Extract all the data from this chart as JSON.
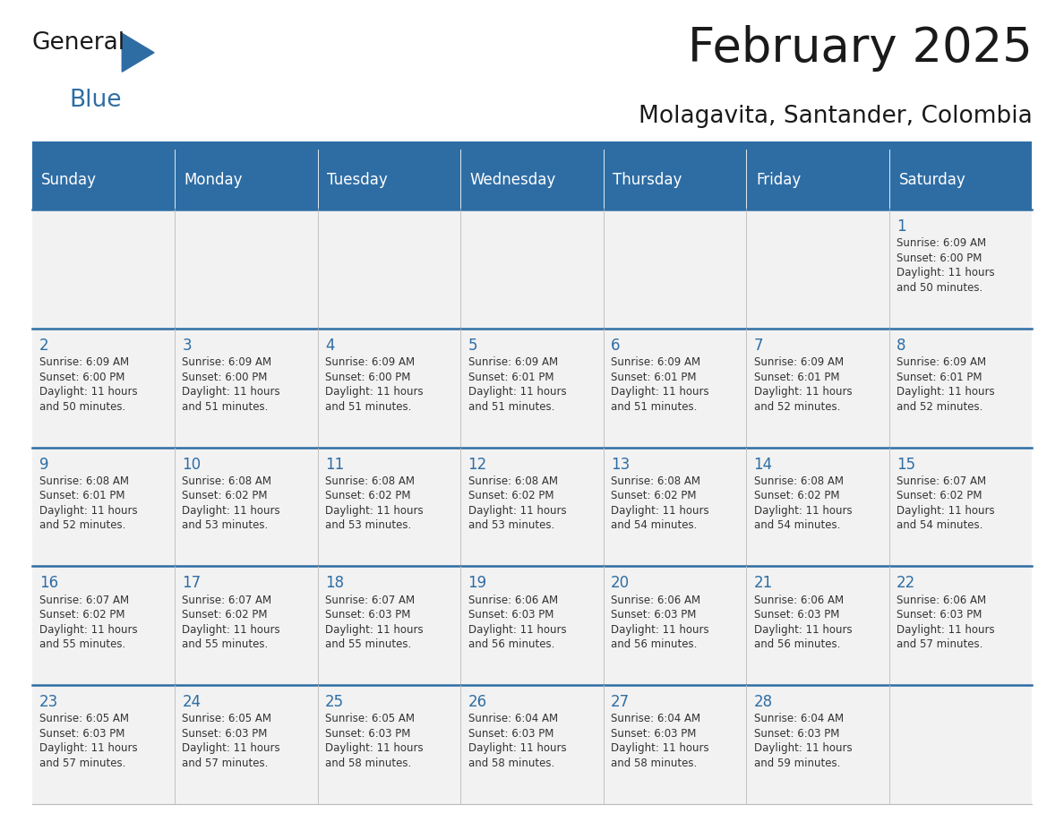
{
  "title": "February 2025",
  "subtitle": "Molagavita, Santander, Colombia",
  "header_bg": "#2E6DA4",
  "header_text": "#FFFFFF",
  "cell_bg": "#F2F2F2",
  "day_names": [
    "Sunday",
    "Monday",
    "Tuesday",
    "Wednesday",
    "Thursday",
    "Friday",
    "Saturday"
  ],
  "days": [
    {
      "day": 1,
      "col": 6,
      "row": 0,
      "sunrise": "6:09 AM",
      "sunset": "6:00 PM",
      "daylight": "11 hours\nand 50 minutes."
    },
    {
      "day": 2,
      "col": 0,
      "row": 1,
      "sunrise": "6:09 AM",
      "sunset": "6:00 PM",
      "daylight": "11 hours\nand 50 minutes."
    },
    {
      "day": 3,
      "col": 1,
      "row": 1,
      "sunrise": "6:09 AM",
      "sunset": "6:00 PM",
      "daylight": "11 hours\nand 51 minutes."
    },
    {
      "day": 4,
      "col": 2,
      "row": 1,
      "sunrise": "6:09 AM",
      "sunset": "6:00 PM",
      "daylight": "11 hours\nand 51 minutes."
    },
    {
      "day": 5,
      "col": 3,
      "row": 1,
      "sunrise": "6:09 AM",
      "sunset": "6:01 PM",
      "daylight": "11 hours\nand 51 minutes."
    },
    {
      "day": 6,
      "col": 4,
      "row": 1,
      "sunrise": "6:09 AM",
      "sunset": "6:01 PM",
      "daylight": "11 hours\nand 51 minutes."
    },
    {
      "day": 7,
      "col": 5,
      "row": 1,
      "sunrise": "6:09 AM",
      "sunset": "6:01 PM",
      "daylight": "11 hours\nand 52 minutes."
    },
    {
      "day": 8,
      "col": 6,
      "row": 1,
      "sunrise": "6:09 AM",
      "sunset": "6:01 PM",
      "daylight": "11 hours\nand 52 minutes."
    },
    {
      "day": 9,
      "col": 0,
      "row": 2,
      "sunrise": "6:08 AM",
      "sunset": "6:01 PM",
      "daylight": "11 hours\nand 52 minutes."
    },
    {
      "day": 10,
      "col": 1,
      "row": 2,
      "sunrise": "6:08 AM",
      "sunset": "6:02 PM",
      "daylight": "11 hours\nand 53 minutes."
    },
    {
      "day": 11,
      "col": 2,
      "row": 2,
      "sunrise": "6:08 AM",
      "sunset": "6:02 PM",
      "daylight": "11 hours\nand 53 minutes."
    },
    {
      "day": 12,
      "col": 3,
      "row": 2,
      "sunrise": "6:08 AM",
      "sunset": "6:02 PM",
      "daylight": "11 hours\nand 53 minutes."
    },
    {
      "day": 13,
      "col": 4,
      "row": 2,
      "sunrise": "6:08 AM",
      "sunset": "6:02 PM",
      "daylight": "11 hours\nand 54 minutes."
    },
    {
      "day": 14,
      "col": 5,
      "row": 2,
      "sunrise": "6:08 AM",
      "sunset": "6:02 PM",
      "daylight": "11 hours\nand 54 minutes."
    },
    {
      "day": 15,
      "col": 6,
      "row": 2,
      "sunrise": "6:07 AM",
      "sunset": "6:02 PM",
      "daylight": "11 hours\nand 54 minutes."
    },
    {
      "day": 16,
      "col": 0,
      "row": 3,
      "sunrise": "6:07 AM",
      "sunset": "6:02 PM",
      "daylight": "11 hours\nand 55 minutes."
    },
    {
      "day": 17,
      "col": 1,
      "row": 3,
      "sunrise": "6:07 AM",
      "sunset": "6:02 PM",
      "daylight": "11 hours\nand 55 minutes."
    },
    {
      "day": 18,
      "col": 2,
      "row": 3,
      "sunrise": "6:07 AM",
      "sunset": "6:03 PM",
      "daylight": "11 hours\nand 55 minutes."
    },
    {
      "day": 19,
      "col": 3,
      "row": 3,
      "sunrise": "6:06 AM",
      "sunset": "6:03 PM",
      "daylight": "11 hours\nand 56 minutes."
    },
    {
      "day": 20,
      "col": 4,
      "row": 3,
      "sunrise": "6:06 AM",
      "sunset": "6:03 PM",
      "daylight": "11 hours\nand 56 minutes."
    },
    {
      "day": 21,
      "col": 5,
      "row": 3,
      "sunrise": "6:06 AM",
      "sunset": "6:03 PM",
      "daylight": "11 hours\nand 56 minutes."
    },
    {
      "day": 22,
      "col": 6,
      "row": 3,
      "sunrise": "6:06 AM",
      "sunset": "6:03 PM",
      "daylight": "11 hours\nand 57 minutes."
    },
    {
      "day": 23,
      "col": 0,
      "row": 4,
      "sunrise": "6:05 AM",
      "sunset": "6:03 PM",
      "daylight": "11 hours\nand 57 minutes."
    },
    {
      "day": 24,
      "col": 1,
      "row": 4,
      "sunrise": "6:05 AM",
      "sunset": "6:03 PM",
      "daylight": "11 hours\nand 57 minutes."
    },
    {
      "day": 25,
      "col": 2,
      "row": 4,
      "sunrise": "6:05 AM",
      "sunset": "6:03 PM",
      "daylight": "11 hours\nand 58 minutes."
    },
    {
      "day": 26,
      "col": 3,
      "row": 4,
      "sunrise": "6:04 AM",
      "sunset": "6:03 PM",
      "daylight": "11 hours\nand 58 minutes."
    },
    {
      "day": 27,
      "col": 4,
      "row": 4,
      "sunrise": "6:04 AM",
      "sunset": "6:03 PM",
      "daylight": "11 hours\nand 58 minutes."
    },
    {
      "day": 28,
      "col": 5,
      "row": 4,
      "sunrise": "6:04 AM",
      "sunset": "6:03 PM",
      "daylight": "11 hours\nand 59 minutes."
    }
  ],
  "num_rows": 5,
  "logo_text_general": "General",
  "logo_text_blue": "Blue",
  "logo_color_general": "#1a1a1a",
  "logo_color_blue": "#2E6DA4",
  "logo_triangle_color": "#2E6DA4",
  "title_color": "#1a1a1a",
  "subtitle_color": "#1a1a1a",
  "cell_text_color": "#333333",
  "day_number_color": "#2E6DA4",
  "row_separator_color": "#2E6DA4",
  "border_color": "#BBBBBB",
  "white": "#FFFFFF"
}
